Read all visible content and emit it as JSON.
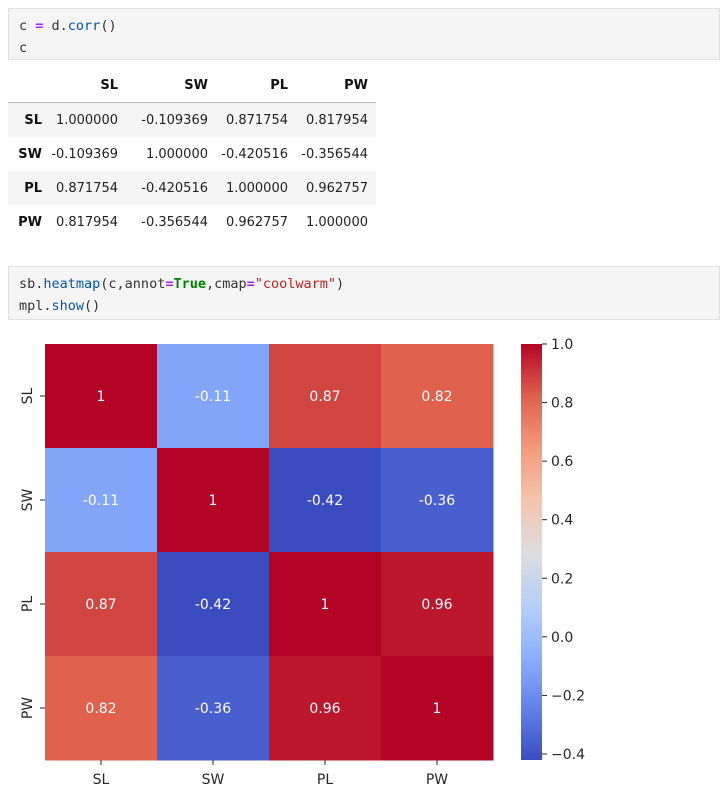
{
  "cell1": {
    "line1": {
      "a": "c ",
      "op": "=",
      "b": " d.",
      "fn": "corr",
      "c": "()"
    },
    "line2": "c"
  },
  "cell2": {
    "line1": {
      "a": "sb.",
      "fn": "heatmap",
      "b": "(c,annot",
      "op1": "=",
      "kw": "True",
      "c": ",cmap",
      "op2": "=",
      "str": "\"coolwarm\"",
      "d": ")"
    },
    "line2": {
      "a": "mpl.",
      "fn": "show",
      "b": "()"
    }
  },
  "table": {
    "columns": [
      "SL",
      "SW",
      "PL",
      "PW"
    ],
    "rows": [
      {
        "label": "SL",
        "values": [
          "1.000000",
          "-0.109369",
          "0.871754",
          "0.817954"
        ]
      },
      {
        "label": "SW",
        "values": [
          "-0.109369",
          "1.000000",
          "-0.420516",
          "-0.356544"
        ]
      },
      {
        "label": "PL",
        "values": [
          "0.871754",
          "-0.420516",
          "1.000000",
          "0.962757"
        ]
      },
      {
        "label": "PW",
        "values": [
          "0.817954",
          "-0.356544",
          "0.962757",
          "1.000000"
        ]
      }
    ]
  },
  "chart_data": {
    "type": "heatmap",
    "cmap": "coolwarm",
    "x_labels": [
      "SL",
      "SW",
      "PL",
      "PW"
    ],
    "y_labels": [
      "SL",
      "SW",
      "PL",
      "PW"
    ],
    "values": [
      [
        1.0,
        -0.109369,
        0.871754,
        0.817954
      ],
      [
        -0.109369,
        1.0,
        -0.420516,
        -0.356544
      ],
      [
        0.871754,
        -0.420516,
        1.0,
        0.962757
      ],
      [
        0.817954,
        -0.356544,
        0.962757,
        1.0
      ]
    ],
    "annotations": [
      [
        "1",
        "-0.11",
        "0.87",
        "0.82"
      ],
      [
        "-0.11",
        "1",
        "-0.42",
        "-0.36"
      ],
      [
        "0.87",
        "-0.42",
        "1",
        "0.96"
      ],
      [
        "0.82",
        "-0.36",
        "0.96",
        "1"
      ]
    ],
    "vmin": -0.420516,
    "vmax": 1.0,
    "colorbar_ticks": [
      1.0,
      0.8,
      0.6,
      0.4,
      0.2,
      0.0,
      -0.2,
      -0.4
    ],
    "colorbar_tick_labels": [
      "1.0",
      "0.8",
      "0.6",
      "0.4",
      "0.2",
      "0.0",
      "−0.2",
      "−0.4"
    ]
  }
}
